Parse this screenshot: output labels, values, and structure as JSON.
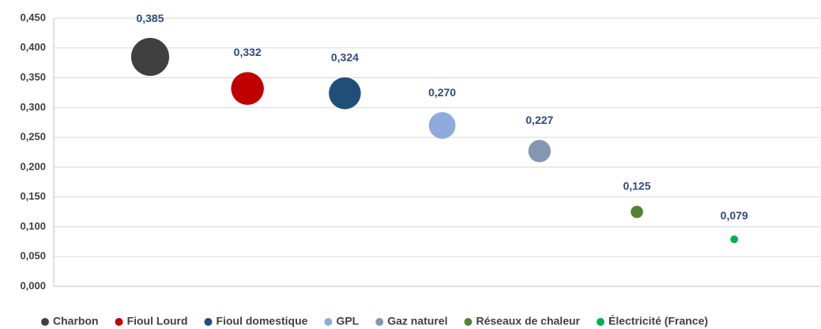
{
  "chart_data": {
    "type": "bubble",
    "ylim": [
      0,
      0.45
    ],
    "yticks": [
      {
        "value": 0,
        "label": "0,000"
      },
      {
        "value": 0.05,
        "label": "0,050"
      },
      {
        "value": 0.1,
        "label": "0,100"
      },
      {
        "value": 0.15,
        "label": "0,150"
      },
      {
        "value": 0.2,
        "label": "0,200"
      },
      {
        "value": 0.25,
        "label": "0,250"
      },
      {
        "value": 0.3,
        "label": "0,300"
      },
      {
        "value": 0.35,
        "label": "0,350"
      },
      {
        "value": 0.4,
        "label": "0,400"
      },
      {
        "value": 0.45,
        "label": "0,450"
      }
    ],
    "grid": true,
    "legend": "bottom",
    "series": [
      {
        "name": "Charbon",
        "color": "#404040",
        "values": [
          0.385
        ],
        "value_labels": [
          "0,385"
        ]
      },
      {
        "name": "Fioul Lourd",
        "color": "#c00000",
        "values": [
          0.332
        ],
        "value_labels": [
          "0,332"
        ]
      },
      {
        "name": "Fioul domestique",
        "color": "#1f4e79",
        "values": [
          0.324
        ],
        "value_labels": [
          "0,324"
        ]
      },
      {
        "name": "GPL",
        "color": "#8faadc",
        "values": [
          0.27
        ],
        "value_labels": [
          "0,270"
        ]
      },
      {
        "name": "Gaz naturel",
        "color": "#8497b0",
        "values": [
          0.227
        ],
        "value_labels": [
          "0,227"
        ]
      },
      {
        "name": "Réseaux de chaleur",
        "color": "#548235",
        "values": [
          0.125
        ],
        "value_labels": [
          "0,125"
        ]
      },
      {
        "name": "Électricité (France)",
        "color": "#00b050",
        "values": [
          0.079
        ],
        "value_labels": [
          "0,079"
        ]
      }
    ]
  }
}
